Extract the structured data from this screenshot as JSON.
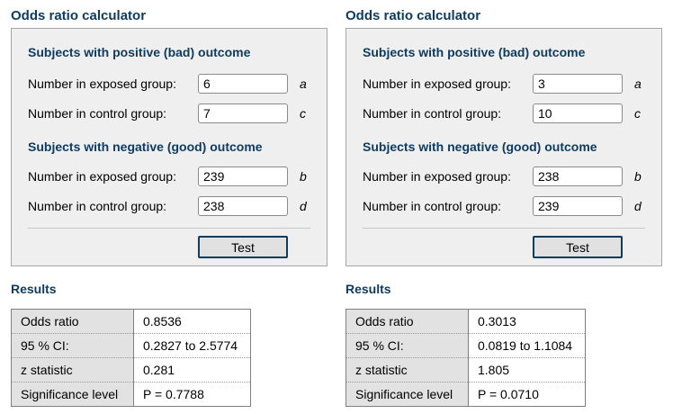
{
  "accent_color": "#0e3c61",
  "panels": [
    {
      "title": "Odds ratio calculator",
      "sections": [
        {
          "heading": "Subjects with positive (bad) outcome",
          "rows": [
            {
              "label": "Number in exposed group:",
              "value": "6",
              "letter": "a"
            },
            {
              "label": "Number in control group:",
              "value": "7",
              "letter": "c"
            }
          ]
        },
        {
          "heading": "Subjects with negative (good) outcome",
          "rows": [
            {
              "label": "Number in exposed group:",
              "value": "239",
              "letter": "b"
            },
            {
              "label": "Number in control group:",
              "value": "238",
              "letter": "d"
            }
          ]
        }
      ],
      "button_label": "Test",
      "results": {
        "title": "Results",
        "rows": [
          {
            "label": "Odds ratio",
            "value": "0.8536"
          },
          {
            "label": "95 % CI:",
            "value": "0.2827 to 2.5774"
          },
          {
            "label": "z statistic",
            "value": "0.281"
          },
          {
            "label": "Significance level",
            "value": "P = 0.7788"
          }
        ]
      }
    },
    {
      "title": "Odds ratio calculator",
      "sections": [
        {
          "heading": "Subjects with positive (bad) outcome",
          "rows": [
            {
              "label": "Number in exposed group:",
              "value": "3",
              "letter": "a"
            },
            {
              "label": "Number in control group:",
              "value": "10",
              "letter": "c"
            }
          ]
        },
        {
          "heading": "Subjects with negative (good) outcome",
          "rows": [
            {
              "label": "Number in exposed group:",
              "value": "238",
              "letter": "b"
            },
            {
              "label": "Number in control group:",
              "value": "239",
              "letter": "d"
            }
          ]
        }
      ],
      "button_label": "Test",
      "results": {
        "title": "Results",
        "rows": [
          {
            "label": "Odds ratio",
            "value": "0.3013"
          },
          {
            "label": "95 % CI:",
            "value": "0.0819 to 1.1084"
          },
          {
            "label": "z statistic",
            "value": "1.805"
          },
          {
            "label": "Significance level",
            "value": "P = 0.0710"
          }
        ]
      }
    }
  ]
}
